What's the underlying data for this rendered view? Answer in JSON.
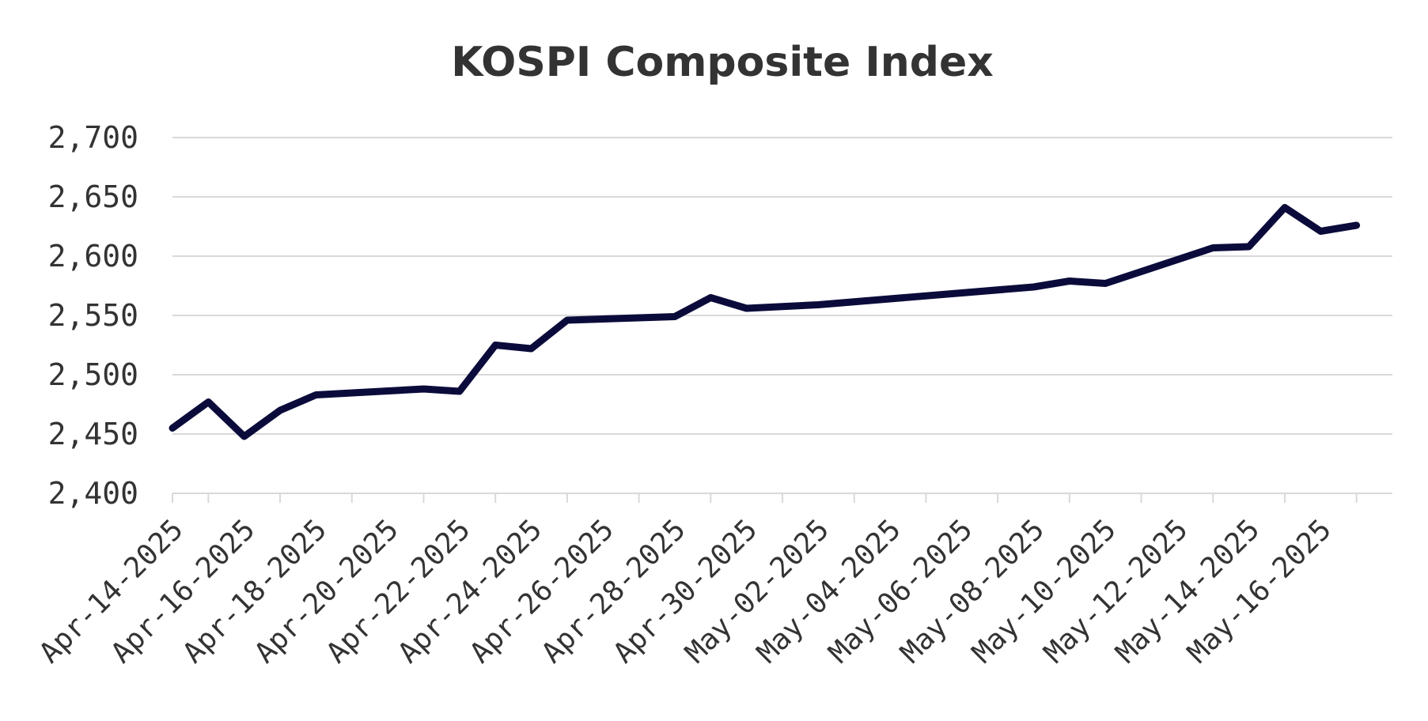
{
  "chart_data": {
    "type": "line",
    "title": "KOSPI Composite Index",
    "xlabel": "",
    "ylabel": "",
    "ylim": [
      2400,
      2700
    ],
    "y_ticks": [
      "2,400",
      "2,450",
      "2,500",
      "2,550",
      "2,600",
      "2,650",
      "2,700"
    ],
    "y_tick_values": [
      2400,
      2450,
      2500,
      2550,
      2600,
      2650,
      2700
    ],
    "x_range": [
      "2025-04-13",
      "2025-05-17"
    ],
    "x_tick_labels": [
      "Apr-14-2025",
      "Apr-16-2025",
      "Apr-18-2025",
      "Apr-20-2025",
      "Apr-22-2025",
      "Apr-24-2025",
      "Apr-26-2025",
      "Apr-28-2025",
      "Apr-30-2025",
      "May-02-2025",
      "May-04-2025",
      "May-06-2025",
      "May-08-2025",
      "May-10-2025",
      "May-12-2025",
      "May-14-2025",
      "May-16-2025"
    ],
    "x_tick_dates": [
      "2025-04-14",
      "2025-04-16",
      "2025-04-18",
      "2025-04-20",
      "2025-04-22",
      "2025-04-24",
      "2025-04-26",
      "2025-04-28",
      "2025-04-30",
      "2025-05-02",
      "2025-05-04",
      "2025-05-06",
      "2025-05-08",
      "2025-05-10",
      "2025-05-12",
      "2025-05-14",
      "2025-05-16"
    ],
    "grid": true,
    "series": [
      {
        "color": "#0b0b3b",
        "points": [
          {
            "x": "2025-04-13",
            "y": 2455
          },
          {
            "x": "2025-04-14",
            "y": 2477
          },
          {
            "x": "2025-04-15",
            "y": 2448
          },
          {
            "x": "2025-04-16",
            "y": 2470
          },
          {
            "x": "2025-04-17",
            "y": 2483
          },
          {
            "x": "2025-04-20",
            "y": 2488
          },
          {
            "x": "2025-04-21",
            "y": 2486
          },
          {
            "x": "2025-04-22",
            "y": 2525
          },
          {
            "x": "2025-04-23",
            "y": 2522
          },
          {
            "x": "2025-04-24",
            "y": 2546
          },
          {
            "x": "2025-04-27",
            "y": 2549
          },
          {
            "x": "2025-04-28",
            "y": 2565
          },
          {
            "x": "2025-04-29",
            "y": 2556
          },
          {
            "x": "2025-05-01",
            "y": 2559
          },
          {
            "x": "2025-05-07",
            "y": 2574
          },
          {
            "x": "2025-05-08",
            "y": 2579
          },
          {
            "x": "2025-05-09",
            "y": 2577
          },
          {
            "x": "2025-05-12",
            "y": 2607
          },
          {
            "x": "2025-05-13",
            "y": 2608
          },
          {
            "x": "2025-05-14",
            "y": 2641
          },
          {
            "x": "2025-05-15",
            "y": 2621
          },
          {
            "x": "2025-05-16",
            "y": 2626
          }
        ]
      }
    ]
  }
}
